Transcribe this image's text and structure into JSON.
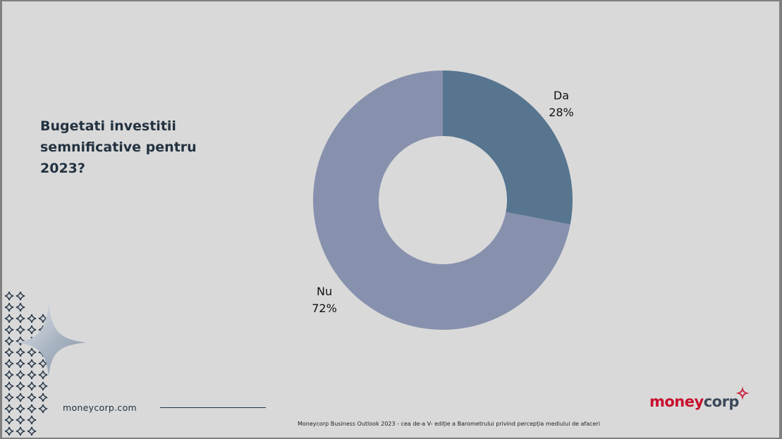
{
  "question": "Bugetati investitii semnificative pentru 2023?",
  "chart_data": {
    "type": "pie",
    "variant": "donut",
    "title": "",
    "slices": [
      {
        "label": "Da",
        "value": 28,
        "value_label": "28%",
        "color": "#57758f"
      },
      {
        "label": "Nu",
        "value": 72,
        "value_label": "72%",
        "color": "#8791ad"
      }
    ],
    "legend": "none"
  },
  "footer": {
    "website": "moneycorp.com",
    "footnote": "Moneycorp Business Outlook 2023 - cea de-a V- ediție a Barometrului privind percepția mediului de afaceri"
  },
  "brand": {
    "name_part1": "money",
    "name_part2": "corp",
    "full_name": "moneycorp",
    "colors": {
      "red": "#c8102e",
      "slate": "#3c4a5b"
    }
  },
  "colors": {
    "background": "#d9d9d9",
    "text": "#233240"
  },
  "icons": [
    "diamond-pattern-icon",
    "four-point-star-icon",
    "brand-sparkle-icon"
  ]
}
